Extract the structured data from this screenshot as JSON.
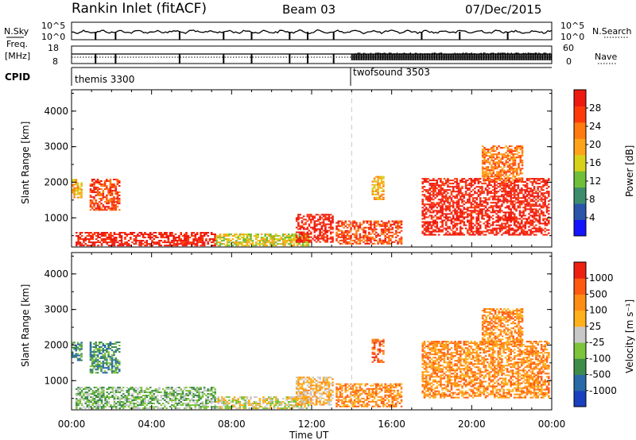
{
  "header": {
    "title": "Rankin Inlet (fitACF)",
    "beam": "Beam 03",
    "date": "07/Dec/2015"
  },
  "summary": {
    "nsky_label": "N.Sky",
    "nsky_ticks": [
      "10^5",
      "10^0"
    ],
    "nsearch_label": "N.Search",
    "freq_label_1": "Freq.",
    "freq_label_2": "[MHz]",
    "freq_ticks": [
      "18",
      "8"
    ],
    "nave_label": "Nave",
    "nave_ticks": [
      "60",
      "0"
    ],
    "cpid_label": "CPID",
    "cpid_programs": [
      {
        "name": "themis 3300",
        "start_hour": 0
      },
      {
        "name": "twofsound 3503",
        "start_hour": 14
      }
    ]
  },
  "panels": [
    {
      "id": "power",
      "ylabel": "Slant Range [km]",
      "yticks": [
        "1000",
        "2000",
        "3000",
        "4000"
      ],
      "colorbar_label": "Power [dB]",
      "colorbar_ticks": [
        "28",
        "24",
        "20",
        "16",
        "12",
        "8",
        "4"
      ],
      "colors": [
        "#1414ff",
        "#2a55aa",
        "#3e8c6e",
        "#6fbf3a",
        "#d6d21a",
        "#ffa41a",
        "#ff7a10",
        "#ff3a0a",
        "#ee1a10"
      ]
    },
    {
      "id": "velocity",
      "ylabel": "Slant Range [km]",
      "yticks": [
        "1000",
        "2000",
        "3000",
        "4000"
      ],
      "colorbar_label": "Velocity [m s⁻¹]",
      "colorbar_ticks": [
        "1000",
        "500",
        "100",
        "25",
        "-25",
        "-100",
        "-500",
        "-1000"
      ],
      "colors": [
        "#1a3fbf",
        "#2a6aa6",
        "#3e8c4a",
        "#7cc43a",
        "#c8c8c8",
        "#ffb01a",
        "#ff8c14",
        "#ff5a10",
        "#ee2010"
      ]
    }
  ],
  "xaxis": {
    "label": "Time UT",
    "ticks": [
      "00:00",
      "04:00",
      "08:00",
      "12:00",
      "16:00",
      "20:00",
      "00:00"
    ]
  },
  "chart_data": {
    "type": "heatmap",
    "title": "Rankin Inlet (fitACF)",
    "xlabel": "Time UT",
    "ylabel": "Slant Range [km]",
    "xlim_hours": [
      0,
      24
    ],
    "ylim_km": [
      180,
      4600
    ],
    "mode_change_hour": 14,
    "power_patches": [
      {
        "t0": 0.0,
        "t1": 0.5,
        "r0": 1550,
        "r1": 2050,
        "level": 5
      },
      {
        "t0": 0.9,
        "t1": 2.4,
        "r0": 1200,
        "r1": 2100,
        "level": 7
      },
      {
        "t0": 0.2,
        "t1": 7.2,
        "r0": 200,
        "r1": 600,
        "level": 8
      },
      {
        "t0": 7.2,
        "t1": 11.8,
        "r0": 200,
        "r1": 550,
        "level": 4
      },
      {
        "t0": 11.2,
        "t1": 13.0,
        "r0": 300,
        "r1": 1100,
        "level": 8
      },
      {
        "t0": 13.2,
        "t1": 16.5,
        "r0": 250,
        "r1": 900,
        "level": 7
      },
      {
        "t0": 15.0,
        "t1": 15.6,
        "r0": 1500,
        "r1": 2150,
        "level": 5
      },
      {
        "t0": 17.5,
        "t1": 23.8,
        "r0": 500,
        "r1": 2100,
        "level": 8
      },
      {
        "t0": 20.5,
        "t1": 22.5,
        "r0": 2000,
        "r1": 3000,
        "level": 6
      }
    ],
    "velocity_patches": [
      {
        "t0": 0.0,
        "t1": 0.5,
        "r0": 1550,
        "r1": 2050,
        "level": 2
      },
      {
        "t0": 0.9,
        "t1": 2.4,
        "r0": 1200,
        "r1": 2100,
        "level": 2
      },
      {
        "t0": 0.2,
        "t1": 7.2,
        "r0": 200,
        "r1": 800,
        "level": 3
      },
      {
        "t0": 7.2,
        "t1": 11.8,
        "r0": 200,
        "r1": 550,
        "level": 4
      },
      {
        "t0": 11.2,
        "t1": 13.0,
        "r0": 300,
        "r1": 1100,
        "level": 5
      },
      {
        "t0": 13.2,
        "t1": 16.5,
        "r0": 250,
        "r1": 900,
        "level": 6
      },
      {
        "t0": 15.0,
        "t1": 15.6,
        "r0": 1500,
        "r1": 2150,
        "level": 7
      },
      {
        "t0": 17.5,
        "t1": 23.8,
        "r0": 500,
        "r1": 2100,
        "level": 6
      },
      {
        "t0": 20.5,
        "t1": 22.5,
        "r0": 2000,
        "r1": 3000,
        "level": 6
      }
    ]
  }
}
